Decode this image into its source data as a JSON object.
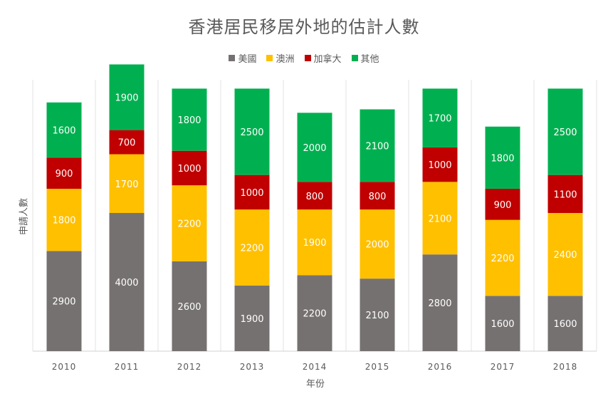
{
  "chart_data": {
    "type": "bar",
    "stacked": true,
    "title": "香港居民移居外地的估計人數",
    "xlabel": "年份",
    "ylabel": "申請人數",
    "categories": [
      "2010",
      "2011",
      "2012",
      "2013",
      "2014",
      "2015",
      "2016",
      "2017",
      "2018"
    ],
    "series": [
      {
        "name": "美國",
        "color": "#767171",
        "values": [
          2900,
          4000,
          2600,
          1900,
          2200,
          2100,
          2800,
          1600,
          1600
        ]
      },
      {
        "name": "澳洲",
        "color": "#FFC000",
        "values": [
          1800,
          1700,
          2200,
          2200,
          1900,
          2000,
          2100,
          2200,
          2400
        ]
      },
      {
        "name": "加拿大",
        "color": "#C00000",
        "values": [
          900,
          700,
          1000,
          1000,
          800,
          800,
          1000,
          900,
          1100
        ]
      },
      {
        "name": "其他",
        "color": "#00B050",
        "values": [
          1600,
          1900,
          1800,
          2500,
          2000,
          2100,
          1700,
          1800,
          2500
        ]
      }
    ],
    "legend_position": "top-center",
    "grid": "vertical",
    "data_labels": true
  }
}
